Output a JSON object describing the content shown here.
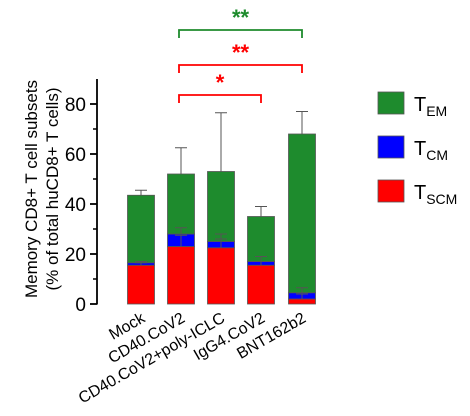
{
  "chart_data": {
    "type": "bar",
    "stacked": true,
    "categories": [
      "Mock",
      "CD40.CoV2",
      "CD40.CoV2+poly-ICLC",
      "IgG4.CoV2",
      "BNT162b2"
    ],
    "ylabel_line1": "Memory CD8+ T cell subsets",
    "ylabel_line2": "(% of total huCD8+ T cells)",
    "ylim": [
      0,
      90
    ],
    "yticks": [
      0,
      20,
      40,
      60,
      80
    ],
    "series": [
      {
        "name": "SCM",
        "name_main": "T",
        "name_sub": "SCM",
        "color": "#ff0000",
        "values": [
          15.5,
          23,
          22.5,
          15.5,
          2
        ],
        "error_up": [
          1,
          4.5,
          3.5,
          3.5,
          2
        ]
      },
      {
        "name": "CM",
        "name_main": "T",
        "name_sub": "CM",
        "color": "#0000ff",
        "values": [
          1,
          5,
          2.5,
          1.5,
          2.5
        ],
        "error_up": [
          0.5,
          2.5,
          3,
          2,
          2
        ]
      },
      {
        "name": "EM",
        "name_main": "T",
        "name_sub": "EM",
        "color": "#1e8b2d",
        "values": [
          27,
          24,
          28,
          18,
          63.5
        ],
        "error_up": [
          2,
          10.5,
          23.5,
          4,
          9
        ]
      }
    ],
    "significance": [
      {
        "from": 1,
        "to": 3,
        "label": "*",
        "color": "#ff0000"
      },
      {
        "from": 1,
        "to": 4,
        "label": "**",
        "color": "#ff0000"
      },
      {
        "from": 1,
        "to": 4,
        "label": "**",
        "color": "#1e8b2d"
      }
    ],
    "legend_position": "right"
  }
}
